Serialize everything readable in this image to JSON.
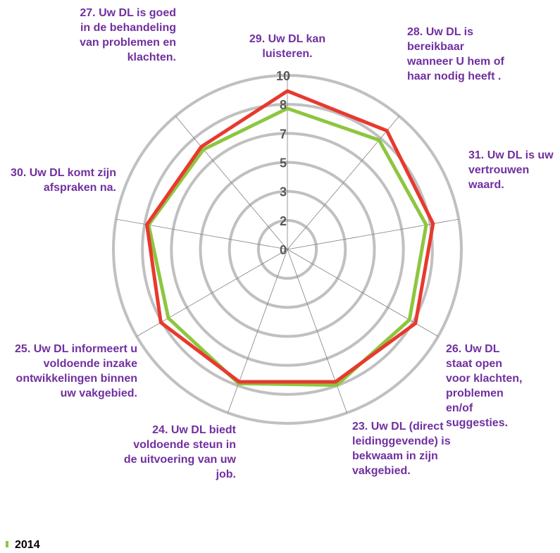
{
  "chart_data": {
    "type": "radar",
    "categories": [
      "29. Uw DL kan luisteren.",
      "28. Uw DL is bereikbaar wanneer U hem of haar nodig heeft .",
      "31. Uw DL is uw vertrouwen waard.",
      "26. Uw DL staat open voor klachten, problemen en/of suggesties.",
      "23. Uw DL (direct leidinggevende) is bekwaam in zijn vakgebied.",
      "24. Uw DL biedt voldoende steun in de uitvoering van uw job.",
      "25. Uw DL informeert u voldoende inzake ontwikkelingen binnen uw vakgebied.",
      "30. Uw DL komt zijn afspraken na.",
      "27. Uw DL is goed in de behandeling van problemen en klachten."
    ],
    "series": [
      {
        "name": "2014",
        "color": "#8dc63f",
        "values": [
          8.1,
          8.2,
          8.1,
          8.1,
          8.3,
          8.2,
          7.9,
          8.1,
          7.5
        ]
      },
      {
        "color": "#e8392f",
        "values": [
          9.1,
          8.9,
          8.5,
          8.5,
          8.1,
          8.1,
          8.4,
          8.2,
          7.7
        ]
      }
    ],
    "ylim": [
      0,
      10
    ],
    "yticks": [
      0,
      {
        "value": 1.667,
        "label": "2"
      },
      {
        "value": 3.333,
        "label": "3"
      },
      5,
      {
        "value": 6.667,
        "label": "7"
      },
      {
        "value": 8.333,
        "label": "8"
      },
      10
    ],
    "grid": true
  }
}
